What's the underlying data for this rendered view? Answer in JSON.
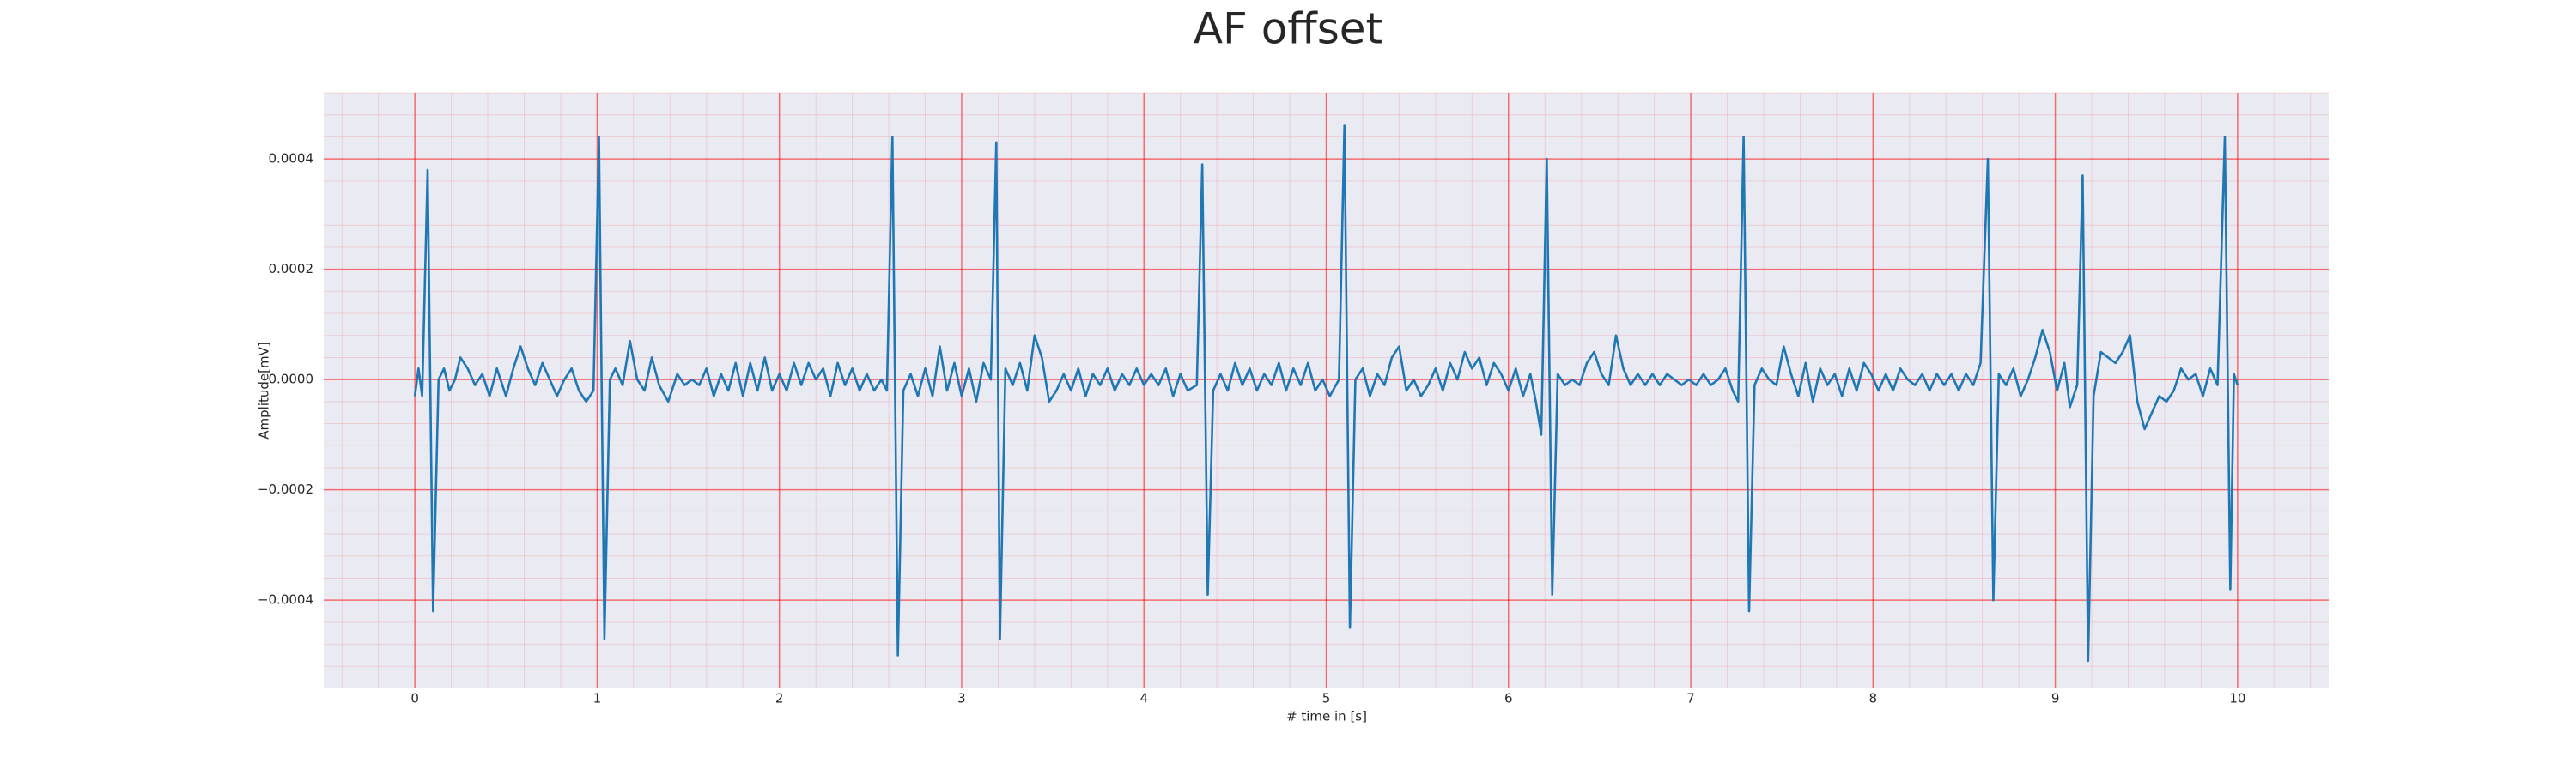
{
  "chart_data": {
    "type": "line",
    "title": "AF offset",
    "x_label": "# time in [s]",
    "y_label": "Amplitude[mV]",
    "color": "#1f77b4",
    "grid": true,
    "minor_grid": true,
    "grid_color": "#ff0000",
    "background": "#eaeaf2",
    "xlim": [
      -0.5,
      10.5
    ],
    "ylim": [
      -0.00056,
      0.00052
    ],
    "xticks": [
      0,
      1,
      2,
      3,
      4,
      5,
      6,
      7,
      8,
      9,
      10
    ],
    "yticks": [
      {
        "value": -0.0004,
        "label": "−0.0004"
      },
      {
        "value": -0.0002,
        "label": "−0.0002"
      },
      {
        "value": 0,
        "label": "0.0000"
      },
      0.0002,
      0.0004
    ],
    "x": [
      0,
      0.02,
      0.04,
      0.07,
      0.1,
      0.13,
      0.16,
      0.19,
      0.22,
      0.25,
      0.29,
      0.33,
      0.37,
      0.41,
      0.45,
      0.5,
      0.54,
      0.58,
      0.62,
      0.66,
      0.7,
      0.74,
      0.78,
      0.82,
      0.86,
      0.9,
      0.94,
      0.98,
      1.01,
      1.04,
      1.07,
      1.1,
      1.14,
      1.18,
      1.22,
      1.26,
      1.3,
      1.34,
      1.39,
      1.44,
      1.48,
      1.52,
      1.56,
      1.6,
      1.64,
      1.68,
      1.72,
      1.76,
      1.8,
      1.84,
      1.88,
      1.92,
      1.96,
      2.0,
      2.04,
      2.08,
      2.12,
      2.16,
      2.2,
      2.24,
      2.28,
      2.32,
      2.36,
      2.4,
      2.44,
      2.48,
      2.52,
      2.56,
      2.59,
      2.62,
      2.65,
      2.68,
      2.72,
      2.76,
      2.8,
      2.84,
      2.88,
      2.92,
      2.96,
      3.0,
      3.04,
      3.08,
      3.12,
      3.16,
      3.19,
      3.21,
      3.24,
      3.28,
      3.32,
      3.36,
      3.4,
      3.44,
      3.48,
      3.52,
      3.56,
      3.6,
      3.64,
      3.68,
      3.72,
      3.76,
      3.8,
      3.84,
      3.88,
      3.92,
      3.96,
      4.0,
      4.04,
      4.08,
      4.12,
      4.16,
      4.2,
      4.24,
      4.29,
      4.32,
      4.35,
      4.38,
      4.42,
      4.46,
      4.5,
      4.54,
      4.58,
      4.62,
      4.66,
      4.7,
      4.74,
      4.78,
      4.82,
      4.86,
      4.9,
      4.94,
      4.98,
      5.02,
      5.07,
      5.1,
      5.13,
      5.16,
      5.2,
      5.24,
      5.28,
      5.32,
      5.36,
      5.4,
      5.44,
      5.48,
      5.52,
      5.56,
      5.6,
      5.64,
      5.68,
      5.72,
      5.76,
      5.8,
      5.84,
      5.88,
      5.92,
      5.96,
      6.0,
      6.04,
      6.08,
      6.12,
      6.15,
      6.18,
      6.21,
      6.24,
      6.27,
      6.31,
      6.35,
      6.39,
      6.43,
      6.47,
      6.51,
      6.55,
      6.59,
      6.63,
      6.67,
      6.71,
      6.75,
      6.79,
      6.83,
      6.87,
      6.91,
      6.95,
      6.99,
      7.03,
      7.07,
      7.11,
      7.15,
      7.19,
      7.23,
      7.26,
      7.29,
      7.32,
      7.35,
      7.39,
      7.43,
      7.47,
      7.51,
      7.55,
      7.59,
      7.63,
      7.67,
      7.71,
      7.75,
      7.79,
      7.83,
      7.87,
      7.91,
      7.95,
      7.99,
      8.03,
      8.07,
      8.11,
      8.15,
      8.19,
      8.23,
      8.27,
      8.31,
      8.35,
      8.39,
      8.43,
      8.47,
      8.51,
      8.55,
      8.59,
      8.63,
      8.66,
      8.69,
      8.73,
      8.77,
      8.81,
      8.85,
      8.89,
      8.93,
      8.97,
      9.01,
      9.05,
      9.08,
      9.12,
      9.15,
      9.18,
      9.21,
      9.25,
      9.29,
      9.33,
      9.37,
      9.41,
      9.45,
      9.49,
      9.53,
      9.57,
      9.61,
      9.65,
      9.69,
      9.73,
      9.77,
      9.81,
      9.85,
      9.89,
      9.93,
      9.96,
      9.98,
      10.0
    ],
    "values": [
      -3e-05,
      2e-05,
      -3e-05,
      0.00038,
      -0.00042,
      0,
      2e-05,
      -2e-05,
      0,
      4e-05,
      2e-05,
      -1e-05,
      1e-05,
      -3e-05,
      2e-05,
      -3e-05,
      2e-05,
      6e-05,
      2e-05,
      -1e-05,
      3e-05,
      0,
      -3e-05,
      0,
      2e-05,
      -2e-05,
      -4e-05,
      -2e-05,
      0.00044,
      -0.00047,
      0,
      2e-05,
      -1e-05,
      7e-05,
      0,
      -2e-05,
      4e-05,
      -1e-05,
      -4e-05,
      1e-05,
      -1e-05,
      0,
      -1e-05,
      2e-05,
      -3e-05,
      1e-05,
      -2e-05,
      3e-05,
      -3e-05,
      3e-05,
      -2e-05,
      4e-05,
      -2e-05,
      1e-05,
      -2e-05,
      3e-05,
      -1e-05,
      3e-05,
      0,
      2e-05,
      -3e-05,
      3e-05,
      -1e-05,
      2e-05,
      -2e-05,
      1e-05,
      -2e-05,
      0,
      -2e-05,
      0.00044,
      -0.0005,
      -2e-05,
      1e-05,
      -3e-05,
      2e-05,
      -3e-05,
      6e-05,
      -2e-05,
      3e-05,
      -3e-05,
      2e-05,
      -4e-05,
      3e-05,
      0,
      0.00043,
      -0.00047,
      2e-05,
      -1e-05,
      3e-05,
      -2e-05,
      8e-05,
      4e-05,
      -4e-05,
      -2e-05,
      1e-05,
      -2e-05,
      2e-05,
      -3e-05,
      1e-05,
      -1e-05,
      2e-05,
      -2e-05,
      1e-05,
      -1e-05,
      2e-05,
      -1e-05,
      1e-05,
      -1e-05,
      2e-05,
      -3e-05,
      1e-05,
      -2e-05,
      -1e-05,
      0.00039,
      -0.00039,
      -2e-05,
      1e-05,
      -2e-05,
      3e-05,
      -1e-05,
      2e-05,
      -2e-05,
      1e-05,
      -1e-05,
      3e-05,
      -2e-05,
      2e-05,
      -1e-05,
      3e-05,
      -2e-05,
      0,
      -3e-05,
      0,
      0.00046,
      -0.00045,
      0,
      2e-05,
      -3e-05,
      1e-05,
      -1e-05,
      4e-05,
      6e-05,
      -2e-05,
      0,
      -3e-05,
      -1e-05,
      2e-05,
      -2e-05,
      3e-05,
      0,
      5e-05,
      2e-05,
      4e-05,
      -1e-05,
      3e-05,
      1e-05,
      -2e-05,
      2e-05,
      -3e-05,
      1e-05,
      -4e-05,
      -0.0001,
      0.0004,
      -0.00039,
      1e-05,
      -1e-05,
      0,
      -1e-05,
      3e-05,
      5e-05,
      1e-05,
      -1e-05,
      8e-05,
      2e-05,
      -1e-05,
      1e-05,
      -1e-05,
      1e-05,
      -1e-05,
      1e-05,
      0,
      -1e-05,
      0,
      -1e-05,
      1e-05,
      -1e-05,
      0,
      2e-05,
      -2e-05,
      -4e-05,
      0.00044,
      -0.00042,
      -1e-05,
      2e-05,
      0,
      -1e-05,
      6e-05,
      1e-05,
      -3e-05,
      3e-05,
      -4e-05,
      2e-05,
      -1e-05,
      1e-05,
      -3e-05,
      2e-05,
      -2e-05,
      3e-05,
      1e-05,
      -2e-05,
      1e-05,
      -2e-05,
      2e-05,
      0,
      -1e-05,
      1e-05,
      -2e-05,
      1e-05,
      -1e-05,
      1e-05,
      -2e-05,
      1e-05,
      -1e-05,
      3e-05,
      0.0004,
      -0.0004,
      1e-05,
      -1e-05,
      2e-05,
      -3e-05,
      0,
      4e-05,
      9e-05,
      5e-05,
      -2e-05,
      3e-05,
      -5e-05,
      -1e-05,
      0.00037,
      -0.00051,
      -3e-05,
      5e-05,
      4e-05,
      3e-05,
      5e-05,
      8e-05,
      -4e-05,
      -9e-05,
      -6e-05,
      -3e-05,
      -4e-05,
      -2e-05,
      2e-05,
      0,
      1e-05,
      -3e-05,
      2e-05,
      -1e-05,
      0.00044,
      -0.00038,
      1e-05,
      -1e-05
    ]
  }
}
